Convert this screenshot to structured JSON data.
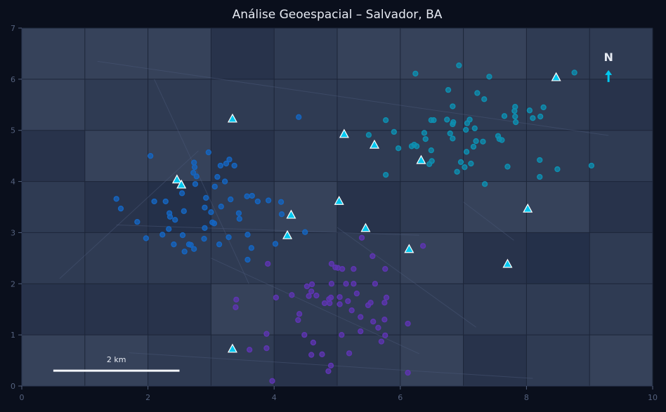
{
  "chart_data": {
    "type": "scatter",
    "title": "Análise Geoespacial – Salvador, BA",
    "xlim": [
      0,
      10
    ],
    "ylim": [
      0,
      7
    ],
    "xticks": [
      "0",
      "2",
      "4",
      "6",
      "8",
      "10"
    ],
    "yticks": [
      "0",
      "1",
      "2",
      "3",
      "4",
      "5",
      "6",
      "7"
    ],
    "grid": true,
    "colors": {
      "background": "#0a0f1c",
      "cluster_blue": "#1565c0",
      "cluster_cyan": "#0e8fb0",
      "cluster_purple": "#5e35b1",
      "markers": "#00c8f0",
      "north_arrow": "#00c8f0"
    },
    "series": [
      {
        "marker": "circle",
        "color": "#1565c0",
        "points": [
          [
            2.04,
            4.5
          ],
          [
            2.96,
            4.57
          ],
          [
            2.73,
            4.37
          ],
          [
            2.74,
            4.28
          ],
          [
            2.72,
            4.17
          ],
          [
            2.77,
            4.1
          ],
          [
            3.15,
            4.31
          ],
          [
            3.24,
            4.35
          ],
          [
            3.29,
            4.43
          ],
          [
            3.37,
            4.31
          ],
          [
            3.1,
            4.09
          ],
          [
            3.22,
            4.0
          ],
          [
            2.54,
            3.77
          ],
          [
            2.75,
            3.95
          ],
          [
            3.06,
            3.9
          ],
          [
            2.92,
            3.68
          ],
          [
            3.31,
            3.65
          ],
          [
            1.5,
            3.66
          ],
          [
            1.57,
            3.47
          ],
          [
            2.1,
            3.61
          ],
          [
            2.28,
            3.61
          ],
          [
            2.57,
            3.42
          ],
          [
            2.9,
            3.49
          ],
          [
            3.16,
            3.51
          ],
          [
            3.0,
            3.4
          ],
          [
            1.83,
            3.21
          ],
          [
            2.34,
            3.38
          ],
          [
            2.35,
            3.31
          ],
          [
            2.43,
            3.25
          ],
          [
            3.02,
            3.2
          ],
          [
            3.05,
            3.18
          ],
          [
            2.9,
            3.09
          ],
          [
            2.33,
            3.07
          ],
          [
            2.23,
            2.96
          ],
          [
            2.55,
            2.95
          ],
          [
            1.97,
            2.89
          ],
          [
            2.89,
            2.88
          ],
          [
            3.28,
            2.91
          ],
          [
            2.41,
            2.77
          ],
          [
            2.65,
            2.77
          ],
          [
            2.68,
            2.76
          ],
          [
            2.73,
            2.68
          ],
          [
            2.58,
            2.63
          ],
          [
            3.13,
            2.77
          ],
          [
            3.44,
            3.38
          ],
          [
            3.45,
            3.27
          ],
          [
            3.57,
            3.71
          ],
          [
            3.65,
            3.72
          ],
          [
            3.74,
            3.61
          ],
          [
            3.91,
            3.63
          ],
          [
            4.11,
            3.6
          ],
          [
            4.12,
            3.36
          ],
          [
            3.58,
            2.96
          ],
          [
            3.64,
            2.7
          ],
          [
            3.58,
            2.47
          ],
          [
            4.02,
            2.78
          ],
          [
            4.49,
            3.01
          ],
          [
            4.39,
            5.26
          ]
        ]
      },
      {
        "marker": "circle",
        "color": "#0e8fb0",
        "points": [
          [
            6.93,
            6.27
          ],
          [
            6.24,
            6.11
          ],
          [
            7.41,
            6.05
          ],
          [
            8.76,
            6.13
          ],
          [
            6.76,
            5.79
          ],
          [
            7.22,
            5.73
          ],
          [
            7.33,
            5.61
          ],
          [
            6.83,
            5.47
          ],
          [
            7.82,
            5.46
          ],
          [
            7.81,
            5.38
          ],
          [
            8.05,
            5.39
          ],
          [
            8.27,
            5.45
          ],
          [
            7.65,
            5.28
          ],
          [
            7.82,
            5.27
          ],
          [
            8.1,
            5.24
          ],
          [
            8.22,
            5.27
          ],
          [
            7.83,
            5.16
          ],
          [
            5.77,
            5.2
          ],
          [
            6.49,
            5.2
          ],
          [
            6.53,
            5.2
          ],
          [
            6.74,
            5.21
          ],
          [
            6.84,
            5.16
          ],
          [
            6.83,
            5.12
          ],
          [
            7.1,
            5.21
          ],
          [
            7.06,
            5.14
          ],
          [
            7.04,
            5.01
          ],
          [
            7.18,
            5.04
          ],
          [
            5.5,
            4.91
          ],
          [
            5.9,
            4.97
          ],
          [
            6.38,
            4.95
          ],
          [
            6.4,
            4.83
          ],
          [
            6.79,
            4.94
          ],
          [
            6.83,
            4.84
          ],
          [
            7.55,
            4.89
          ],
          [
            7.57,
            4.83
          ],
          [
            7.61,
            4.81
          ],
          [
            7.2,
            4.79
          ],
          [
            7.31,
            4.78
          ],
          [
            7.16,
            4.68
          ],
          [
            7.05,
            4.58
          ],
          [
            5.97,
            4.65
          ],
          [
            6.18,
            4.69
          ],
          [
            6.22,
            4.72
          ],
          [
            6.26,
            4.69
          ],
          [
            6.49,
            4.61
          ],
          [
            6.5,
            4.4
          ],
          [
            6.46,
            4.34
          ],
          [
            6.96,
            4.38
          ],
          [
            7.02,
            4.28
          ],
          [
            7.12,
            4.35
          ],
          [
            6.9,
            4.19
          ],
          [
            7.7,
            4.29
          ],
          [
            8.21,
            4.42
          ],
          [
            8.49,
            4.24
          ],
          [
            9.03,
            4.31
          ],
          [
            8.21,
            4.09
          ],
          [
            5.77,
            4.13
          ],
          [
            7.34,
            3.95
          ]
        ]
      },
      {
        "marker": "circle",
        "color": "#5e35b1",
        "points": [
          [
            3.9,
            2.39
          ],
          [
            3.4,
            1.69
          ],
          [
            3.39,
            1.54
          ],
          [
            4.03,
            1.73
          ],
          [
            4.28,
            1.78
          ],
          [
            4.52,
            1.95
          ],
          [
            4.6,
            1.99
          ],
          [
            4.59,
            1.85
          ],
          [
            4.55,
            1.76
          ],
          [
            4.67,
            1.77
          ],
          [
            4.8,
            1.62
          ],
          [
            4.88,
            1.62
          ],
          [
            4.87,
            1.7
          ],
          [
            4.9,
            1.73
          ],
          [
            4.91,
            2.39
          ],
          [
            4.91,
            2.0
          ],
          [
            4.4,
            1.41
          ],
          [
            4.38,
            1.29
          ],
          [
            3.88,
            1.02
          ],
          [
            3.88,
            0.74
          ],
          [
            3.61,
            0.71
          ],
          [
            3.97,
            0.1
          ],
          [
            4.48,
            1.0
          ],
          [
            4.62,
            0.85
          ],
          [
            4.59,
            0.61
          ],
          [
            4.76,
            0.62
          ],
          [
            4.9,
            0.4
          ],
          [
            4.86,
            0.29
          ],
          [
            5.39,
            2.9
          ],
          [
            6.36,
            2.74
          ],
          [
            5.56,
            2.54
          ],
          [
            4.97,
            2.32
          ],
          [
            5.01,
            2.31
          ],
          [
            5.08,
            2.29
          ],
          [
            5.26,
            2.29
          ],
          [
            5.76,
            2.29
          ],
          [
            5.14,
            2.0
          ],
          [
            5.26,
            2.0
          ],
          [
            5.6,
            2.0
          ],
          [
            5.31,
            1.81
          ],
          [
            5.04,
            1.74
          ],
          [
            5.17,
            1.66
          ],
          [
            5.04,
            1.6
          ],
          [
            5.78,
            1.73
          ],
          [
            5.75,
            1.63
          ],
          [
            5.53,
            1.63
          ],
          [
            5.49,
            1.58
          ],
          [
            5.23,
            1.48
          ],
          [
            5.37,
            1.35
          ],
          [
            5.57,
            1.26
          ],
          [
            5.75,
            1.3
          ],
          [
            5.65,
            1.14
          ],
          [
            6.12,
            1.22
          ],
          [
            5.37,
            1.07
          ],
          [
            5.07,
            1.0
          ],
          [
            5.76,
            0.99
          ],
          [
            5.7,
            0.87
          ],
          [
            5.19,
            0.64
          ],
          [
            6.12,
            0.26
          ]
        ]
      },
      {
        "marker": "triangle",
        "color": "#00c8f0",
        "points": [
          [
            3.34,
            5.23
          ],
          [
            2.46,
            4.04
          ],
          [
            2.53,
            3.94
          ],
          [
            5.11,
            4.93
          ],
          [
            5.59,
            4.72
          ],
          [
            6.33,
            4.42
          ],
          [
            8.47,
            6.04
          ],
          [
            4.27,
            3.35
          ],
          [
            4.21,
            2.95
          ],
          [
            5.03,
            3.62
          ],
          [
            5.45,
            3.09
          ],
          [
            6.14,
            2.68
          ],
          [
            8.02,
            3.47
          ],
          [
            7.7,
            2.39
          ],
          [
            3.34,
            0.73
          ]
        ]
      }
    ],
    "scale_bar": {
      "label": "2 km",
      "from": 0.5,
      "to": 2.5,
      "y": 0.3
    },
    "north_arrow": {
      "label": "N",
      "x": 9.3,
      "y": 6.0
    }
  }
}
